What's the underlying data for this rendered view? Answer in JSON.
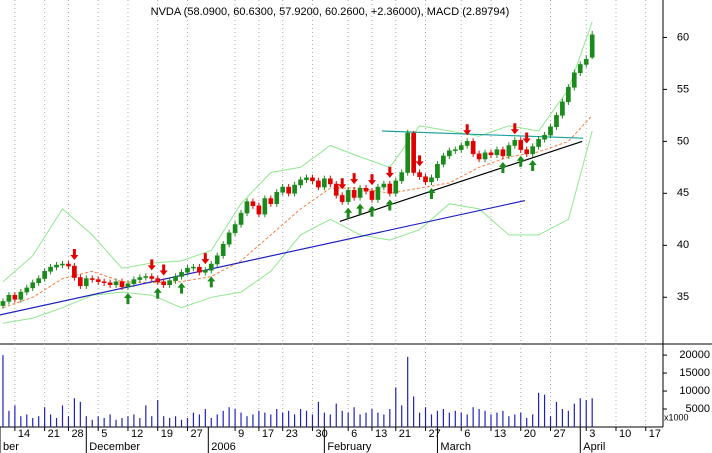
{
  "chart_data": {
    "type": "candlestick",
    "title": "NVDA (58.0900, 60.6300, 57.9200, 60.2600, +2.36000), MACD (2.89794)",
    "up_color": "#1a8a1a",
    "down_color": "#e00000",
    "volume_color": "#2020c0",
    "xlim": [
      -0.5,
      110.9
    ],
    "ylim": [
      30.6,
      63.6
    ],
    "yticks": [
      35,
      40,
      45,
      50,
      55,
      60
    ],
    "volume_ylim": [
      0,
      22800
    ],
    "volume_yticks": [
      5000,
      10000,
      15000,
      20000
    ],
    "volume_unit": "x1000",
    "xticks": [
      {
        "value": 2,
        "label": "14"
      },
      {
        "value": 7,
        "label": "21"
      },
      {
        "value": 11,
        "label": "28"
      },
      {
        "value": 16,
        "label": "5"
      },
      {
        "value": 21,
        "label": "12"
      },
      {
        "value": 26,
        "label": "19"
      },
      {
        "value": 31,
        "label": "27"
      },
      {
        "value": 39,
        "label": "9"
      },
      {
        "value": 43,
        "label": "17"
      },
      {
        "value": 47,
        "label": "23"
      },
      {
        "value": 52,
        "label": "30"
      },
      {
        "value": 58,
        "label": "6"
      },
      {
        "value": 62,
        "label": "13"
      },
      {
        "value": 66,
        "label": "21"
      },
      {
        "value": 71,
        "label": "27"
      },
      {
        "value": 77,
        "label": "6"
      },
      {
        "value": 82,
        "label": "13"
      },
      {
        "value": 87,
        "label": "20"
      },
      {
        "value": 92,
        "label": "27"
      },
      {
        "value": 98,
        "label": "3"
      },
      {
        "value": 103,
        "label": "10"
      },
      {
        "value": 108,
        "label": "17"
      }
    ],
    "month_ticks": [
      {
        "value": -0.5,
        "label": "ber"
      },
      {
        "value": 14,
        "label": "December"
      },
      {
        "value": 34.5,
        "label": "2006"
      },
      {
        "value": 54,
        "label": "February"
      },
      {
        "value": 73,
        "label": "March"
      },
      {
        "value": 97,
        "label": "April"
      }
    ],
    "candles": [
      [
        34.2,
        34.9,
        33.9,
        34.6
      ],
      [
        34.6,
        35.5,
        34.3,
        35.2
      ],
      [
        35.2,
        35.5,
        34.5,
        34.8
      ],
      [
        34.8,
        35.8,
        34.5,
        35.5
      ],
      [
        35.5,
        36.2,
        35.2,
        35.9
      ],
      [
        35.9,
        36.7,
        35.6,
        36.4
      ],
      [
        36.4,
        37.1,
        36.1,
        36.8
      ],
      [
        36.8,
        37.8,
        36.5,
        37.5
      ],
      [
        37.5,
        38.2,
        37.2,
        37.9
      ],
      [
        37.9,
        38.4,
        37.6,
        38.1
      ],
      [
        38.1,
        38.5,
        37.8,
        38.2
      ],
      [
        38.2,
        38.5,
        37.7,
        38.0
      ],
      [
        38.0,
        38.3,
        36.6,
        36.9
      ],
      [
        36.9,
        37.2,
        35.8,
        36.1
      ],
      [
        36.1,
        37.1,
        35.8,
        36.8
      ],
      [
        36.8,
        37.1,
        36.4,
        36.7
      ],
      [
        36.7,
        37.0,
        36.2,
        36.5
      ],
      [
        36.5,
        36.8,
        36.1,
        36.4
      ],
      [
        36.4,
        36.7,
        35.9,
        36.2
      ],
      [
        36.2,
        36.8,
        35.9,
        36.5
      ],
      [
        36.5,
        36.8,
        35.7,
        36.0
      ],
      [
        36.0,
        36.6,
        35.7,
        36.3
      ],
      [
        36.3,
        37.0,
        36.0,
        36.7
      ],
      [
        36.7,
        37.2,
        36.4,
        36.9
      ],
      [
        36.9,
        37.3,
        36.6,
        37.0
      ],
      [
        37.0,
        37.3,
        36.5,
        36.8
      ],
      [
        36.8,
        37.1,
        36.2,
        36.5
      ],
      [
        36.5,
        36.8,
        35.9,
        36.2
      ],
      [
        36.2,
        36.9,
        35.9,
        36.6
      ],
      [
        36.6,
        37.3,
        36.3,
        37.0
      ],
      [
        37.0,
        37.7,
        36.7,
        37.4
      ],
      [
        37.4,
        38.1,
        37.1,
        37.8
      ],
      [
        37.8,
        38.2,
        37.5,
        37.9
      ],
      [
        37.9,
        38.2,
        37.1,
        37.4
      ],
      [
        37.4,
        37.9,
        37.1,
        37.6
      ],
      [
        37.6,
        38.5,
        37.3,
        38.2
      ],
      [
        38.2,
        39.3,
        37.9,
        39.0
      ],
      [
        39.0,
        40.4,
        38.7,
        40.1
      ],
      [
        40.1,
        41.5,
        39.8,
        41.2
      ],
      [
        41.2,
        42.3,
        40.9,
        42.0
      ],
      [
        42.0,
        43.4,
        41.7,
        43.1
      ],
      [
        43.1,
        44.5,
        42.8,
        44.2
      ],
      [
        44.2,
        44.5,
        43.5,
        43.8
      ],
      [
        43.8,
        44.1,
        42.7,
        43.0
      ],
      [
        43.0,
        44.8,
        42.7,
        44.5
      ],
      [
        44.5,
        44.8,
        43.7,
        44.0
      ],
      [
        44.0,
        45.4,
        43.7,
        45.1
      ],
      [
        45.1,
        45.9,
        44.8,
        45.6
      ],
      [
        45.6,
        45.9,
        44.7,
        45.0
      ],
      [
        45.0,
        46.1,
        44.7,
        45.8
      ],
      [
        45.8,
        46.6,
        45.5,
        46.3
      ],
      [
        46.3,
        46.8,
        46.0,
        46.5
      ],
      [
        46.5,
        46.8,
        45.9,
        46.2
      ],
      [
        46.2,
        46.5,
        45.3,
        45.6
      ],
      [
        45.6,
        46.7,
        45.3,
        46.4
      ],
      [
        46.4,
        46.7,
        45.6,
        45.9
      ],
      [
        45.9,
        46.2,
        44.5,
        44.8
      ],
      [
        44.8,
        45.1,
        43.9,
        44.2
      ],
      [
        44.2,
        45.6,
        43.9,
        45.3
      ],
      [
        45.3,
        45.6,
        44.3,
        44.6
      ],
      [
        44.6,
        45.8,
        44.3,
        45.5
      ],
      [
        45.5,
        45.8,
        44.9,
        45.2
      ],
      [
        45.2,
        45.5,
        44.1,
        44.4
      ],
      [
        44.4,
        45.9,
        44.1,
        45.6
      ],
      [
        45.6,
        46.2,
        45.3,
        45.9
      ],
      [
        45.9,
        46.2,
        44.7,
        45.0
      ],
      [
        45.0,
        46.5,
        44.7,
        46.2
      ],
      [
        46.2,
        47.3,
        45.9,
        47.0
      ],
      [
        47.0,
        51.1,
        46.7,
        50.8
      ],
      [
        50.8,
        51.0,
        46.7,
        47.0
      ],
      [
        47.0,
        47.3,
        46.3,
        46.6
      ],
      [
        46.6,
        46.9,
        45.8,
        46.1
      ],
      [
        46.1,
        46.8,
        45.8,
        46.5
      ],
      [
        46.5,
        48.1,
        46.2,
        47.8
      ],
      [
        47.8,
        48.9,
        47.5,
        48.6
      ],
      [
        48.6,
        49.4,
        48.3,
        49.1
      ],
      [
        49.1,
        49.5,
        48.8,
        49.2
      ],
      [
        49.2,
        49.9,
        48.9,
        49.6
      ],
      [
        49.6,
        50.3,
        49.3,
        50.0
      ],
      [
        50.0,
        50.3,
        48.5,
        48.8
      ],
      [
        48.8,
        49.1,
        48.0,
        48.3
      ],
      [
        48.3,
        49.2,
        48.0,
        48.9
      ],
      [
        48.9,
        49.2,
        48.4,
        48.7
      ],
      [
        48.7,
        49.5,
        48.4,
        49.2
      ],
      [
        49.2,
        49.5,
        48.3,
        48.6
      ],
      [
        48.6,
        49.9,
        48.3,
        49.6
      ],
      [
        49.6,
        50.4,
        49.3,
        50.1
      ],
      [
        50.1,
        50.4,
        48.9,
        49.2
      ],
      [
        49.2,
        49.5,
        48.5,
        48.8
      ],
      [
        48.8,
        49.8,
        48.5,
        49.5
      ],
      [
        49.5,
        50.5,
        49.2,
        50.2
      ],
      [
        50.2,
        50.9,
        49.9,
        50.6
      ],
      [
        50.6,
        51.7,
        50.3,
        51.4
      ],
      [
        51.4,
        52.8,
        51.1,
        52.5
      ],
      [
        52.5,
        54.1,
        52.2,
        53.8
      ],
      [
        53.8,
        55.5,
        53.5,
        55.2
      ],
      [
        55.2,
        56.9,
        54.9,
        56.6
      ],
      [
        56.6,
        57.7,
        56.3,
        57.4
      ],
      [
        57.4,
        58.3,
        57.1,
        57.9
      ],
      [
        58.09,
        60.63,
        57.92,
        60.26
      ]
    ],
    "volume": [
      20000,
      4500,
      6000,
      3000,
      3500,
      2500,
      3000,
      5500,
      3500,
      2500,
      6000,
      3000,
      8000,
      7000,
      3000,
      2000,
      3000,
      2500,
      3500,
      2000,
      2500,
      3000,
      3500,
      2500,
      6000,
      3000,
      7500,
      3000,
      2500,
      3000,
      2000,
      2500,
      4000,
      3500,
      5000,
      2500,
      3500,
      4500,
      5500,
      5000,
      4000,
      3000,
      3500,
      4500,
      4000,
      3500,
      5000,
      4000,
      4500,
      3500,
      5000,
      4500,
      3500,
      7000,
      4000,
      3500,
      6500,
      4500,
      4000,
      5500,
      3500,
      4000,
      5000,
      4000,
      3500,
      5000,
      11000,
      6000,
      19500,
      8500,
      4000,
      5500,
      3500,
      4500,
      5000,
      4000,
      4500,
      4000,
      3500,
      5500,
      5000,
      4500,
      3500,
      4000,
      4500,
      3000,
      3500,
      4000,
      2500,
      3500,
      9500,
      9000,
      3000,
      7000,
      5000,
      4500,
      6500,
      8000,
      7500,
      8000
    ],
    "bands": {
      "color": "#90e890",
      "x": [
        0,
        5,
        10,
        15,
        20,
        25,
        30,
        35,
        40,
        45,
        50,
        55,
        60,
        65,
        70,
        75,
        80,
        85,
        90,
        95,
        99
      ],
      "upper": [
        36.5,
        39,
        43.5,
        41,
        37.8,
        38.3,
        38.5,
        39.5,
        44,
        47,
        47.5,
        49.6,
        48.5,
        47.5,
        51.5,
        51,
        50.5,
        51.5,
        51,
        55,
        61.5
      ],
      "lower": [
        32.5,
        33,
        34,
        35.2,
        35.5,
        35.2,
        34,
        35,
        35.5,
        37.5,
        41,
        42.5,
        41,
        40.5,
        41.5,
        44,
        43.5,
        41,
        41,
        42.5,
        51
      ]
    },
    "moving_average": {
      "color": "#f08040",
      "x": [
        0,
        5,
        10,
        15,
        20,
        25,
        30,
        35,
        40,
        45,
        50,
        55,
        60,
        65,
        70,
        75,
        80,
        85,
        90,
        95,
        99
      ],
      "values": [
        34,
        35,
        36.8,
        37.5,
        36.5,
        36.4,
        36.5,
        37,
        38.5,
        41,
        43.5,
        45.5,
        45.5,
        45,
        45.5,
        46,
        47.5,
        48.5,
        49,
        50,
        52.5
      ]
    },
    "trend_lines": [
      {
        "color": "#2020c0",
        "x": [
          -0.5,
          87.7
        ],
        "values": [
          33.3,
          44.3
        ]
      },
      {
        "color": "#000000",
        "x": [
          56.6,
          97.3
        ],
        "values": [
          42.3,
          50
        ]
      },
      {
        "color": "#20a0a0",
        "x": [
          63.7,
          97.5
        ],
        "values": [
          51,
          50.3
        ]
      }
    ],
    "sell_signals": [
      12,
      25,
      27,
      34,
      57,
      59,
      62,
      65,
      70,
      78,
      86,
      88
    ],
    "buy_signals": [
      21,
      26,
      30,
      35,
      58,
      60,
      62,
      65,
      72,
      84,
      87,
      89
    ]
  }
}
